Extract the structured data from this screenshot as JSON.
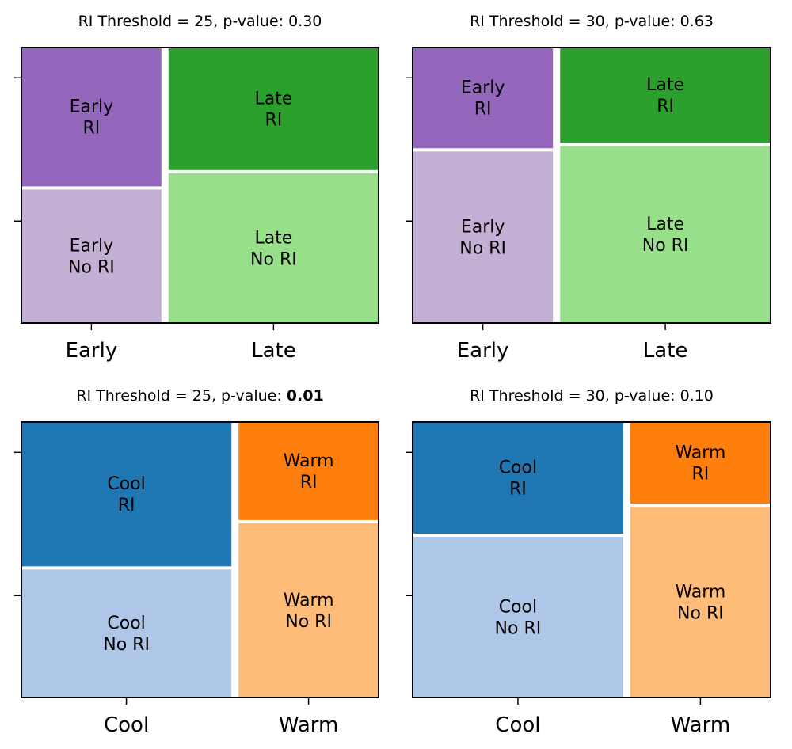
{
  "chart_data": [
    {
      "type": "mosaic",
      "title_prefix": "RI Threshold = 25, p-value: ",
      "p_value": "0.30",
      "p_value_bold": false,
      "categories": [
        "Early",
        "Late"
      ],
      "column_fractions": [
        0.4,
        0.6
      ],
      "ri_fractions": [
        0.51,
        0.45
      ],
      "cells": [
        {
          "label": [
            "Early",
            "RI"
          ],
          "color": "#9467bd"
        },
        {
          "label": [
            "Early",
            "No RI"
          ],
          "color": "#c5b0d5"
        },
        {
          "label": [
            "Late",
            "RI"
          ],
          "color": "#2ca02c"
        },
        {
          "label": [
            "Late",
            "No RI"
          ],
          "color": "#98df8a"
        }
      ]
    },
    {
      "type": "mosaic",
      "title_prefix": "RI Threshold = 30, p-value: ",
      "p_value": "0.63",
      "p_value_bold": false,
      "categories": [
        "Early",
        "Late"
      ],
      "column_fractions": [
        0.4,
        0.6
      ],
      "ri_fractions": [
        0.37,
        0.35
      ],
      "cells": [
        {
          "label": [
            "Early",
            "RI"
          ],
          "color": "#9467bd"
        },
        {
          "label": [
            "Early",
            "No RI"
          ],
          "color": "#c5b0d5"
        },
        {
          "label": [
            "Late",
            "RI"
          ],
          "color": "#2ca02c"
        },
        {
          "label": [
            "Late",
            "No RI"
          ],
          "color": "#98df8a"
        }
      ]
    },
    {
      "type": "mosaic",
      "title_prefix": "RI Threshold = 25, p-value: ",
      "p_value": "0.01",
      "p_value_bold": true,
      "categories": [
        "Cool",
        "Warm"
      ],
      "column_fractions": [
        0.6,
        0.4
      ],
      "ri_fractions": [
        0.53,
        0.36
      ],
      "cells": [
        {
          "label": [
            "Cool",
            "RI"
          ],
          "color": "#1f77b4"
        },
        {
          "label": [
            "Cool",
            "No RI"
          ],
          "color": "#aec7e8"
        },
        {
          "label": [
            "Warm",
            "RI"
          ],
          "color": "#ff7f0e"
        },
        {
          "label": [
            "Warm",
            "No RI"
          ],
          "color": "#ffbb78"
        }
      ]
    },
    {
      "type": "mosaic",
      "title_prefix": "RI Threshold = 30, p-value: ",
      "p_value": "0.10",
      "p_value_bold": false,
      "categories": [
        "Cool",
        "Warm"
      ],
      "column_fractions": [
        0.6,
        0.4
      ],
      "ri_fractions": [
        0.41,
        0.3
      ],
      "cells": [
        {
          "label": [
            "Cool",
            "RI"
          ],
          "color": "#1f77b4"
        },
        {
          "label": [
            "Cool",
            "No RI"
          ],
          "color": "#aec7e8"
        },
        {
          "label": [
            "Warm",
            "RI"
          ],
          "color": "#ff7f0e"
        },
        {
          "label": [
            "Warm",
            "No RI"
          ],
          "color": "#ffbb78"
        }
      ]
    }
  ]
}
